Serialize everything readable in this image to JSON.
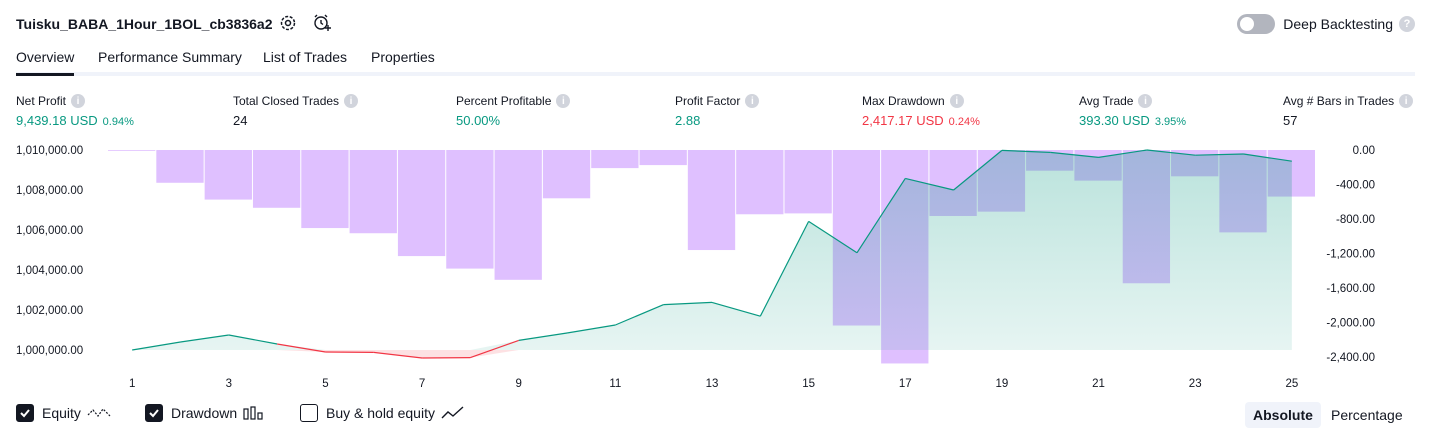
{
  "header": {
    "strategy_title": "Tuisku_BABA_1Hour_1BOL_cb3836a2",
    "settings_icon": "gear-icon",
    "add_alert_icon": "add-alert-icon",
    "deep_backtesting_label": "Deep Backtesting",
    "deep_backtesting_enabled": false,
    "help_mark": "?"
  },
  "tabs": [
    {
      "label": "Overview",
      "active": true
    },
    {
      "label": "Performance Summary",
      "active": false
    },
    {
      "label": "List of Trades",
      "active": false
    },
    {
      "label": "Properties",
      "active": false
    }
  ],
  "metrics": [
    {
      "label": "Net Profit",
      "value": "9,439.18 USD",
      "pct": "0.94%",
      "color": "#089981"
    },
    {
      "label": "Total Closed Trades",
      "value": "24",
      "pct": "",
      "color": "#131722"
    },
    {
      "label": "Percent Profitable",
      "value": "50.00%",
      "pct": "",
      "color": "#089981"
    },
    {
      "label": "Profit Factor",
      "value": "2.88",
      "pct": "",
      "color": "#089981"
    },
    {
      "label": "Max Drawdown",
      "value": "2,417.17 USD",
      "pct": "0.24%",
      "color": "#f23645"
    },
    {
      "label": "Avg Trade",
      "value": "393.30 USD",
      "pct": "3.95%",
      "color": "#089981"
    },
    {
      "label": "Avg # Bars in Trades",
      "value": "57",
      "pct": "",
      "color": "#131722"
    }
  ],
  "chart_data": {
    "type": "line",
    "x": [
      1,
      2,
      3,
      4,
      5,
      6,
      7,
      8,
      9,
      10,
      11,
      12,
      13,
      14,
      15,
      16,
      17,
      18,
      19,
      20,
      21,
      22,
      23,
      24,
      25
    ],
    "x_tick_labels": [
      "1",
      "3",
      "5",
      "7",
      "9",
      "11",
      "13",
      "15",
      "17",
      "19",
      "21",
      "23",
      "25"
    ],
    "series": [
      {
        "kind": "equity",
        "axis": "left",
        "values": [
          1000000,
          1000400,
          1000750,
          1000300,
          999900,
          999880,
          999600,
          999620,
          1000480,
          1000850,
          1001250,
          1002270,
          1002380,
          1001690,
          1006430,
          1004860,
          1008580,
          1008000,
          1009980,
          1009880,
          1009630,
          1010000,
          1009740,
          1009800,
          1009440
        ],
        "color_above": "#089981",
        "color_below": "#f23645"
      },
      {
        "kind": "drawdown",
        "axis": "right",
        "values": [
          0,
          -380,
          -575,
          -670,
          -905,
          -965,
          -1230,
          -1375,
          -1505,
          -560,
          -210,
          -175,
          -1160,
          -745,
          -735,
          -2035,
          -2475,
          -765,
          -715,
          -240,
          -355,
          -1545,
          -305,
          -955,
          -540
        ],
        "color": "#cc99ff"
      }
    ],
    "left_axis": {
      "min": 1000000,
      "max": 1010000,
      "ticks": [
        "1,010,000.00",
        "1,008,000.00",
        "1,006,000.00",
        "1,004,000.00",
        "1,002,000.00",
        "1,000,000.00"
      ]
    },
    "right_axis": {
      "min": -2400,
      "max": 0,
      "ticks": [
        "0.00",
        "-400.00",
        "-800.00",
        "-1,200.00",
        "-1,600.00",
        "-2,000.00",
        "-2,400.00"
      ]
    }
  },
  "legend": {
    "equity_label": "Equity",
    "equity_checked": true,
    "drawdown_label": "Drawdown",
    "drawdown_checked": true,
    "buyhold_label": "Buy & hold equity",
    "buyhold_checked": false
  },
  "mode": {
    "absolute_label": "Absolute",
    "percentage_label": "Percentage",
    "active": "absolute"
  }
}
